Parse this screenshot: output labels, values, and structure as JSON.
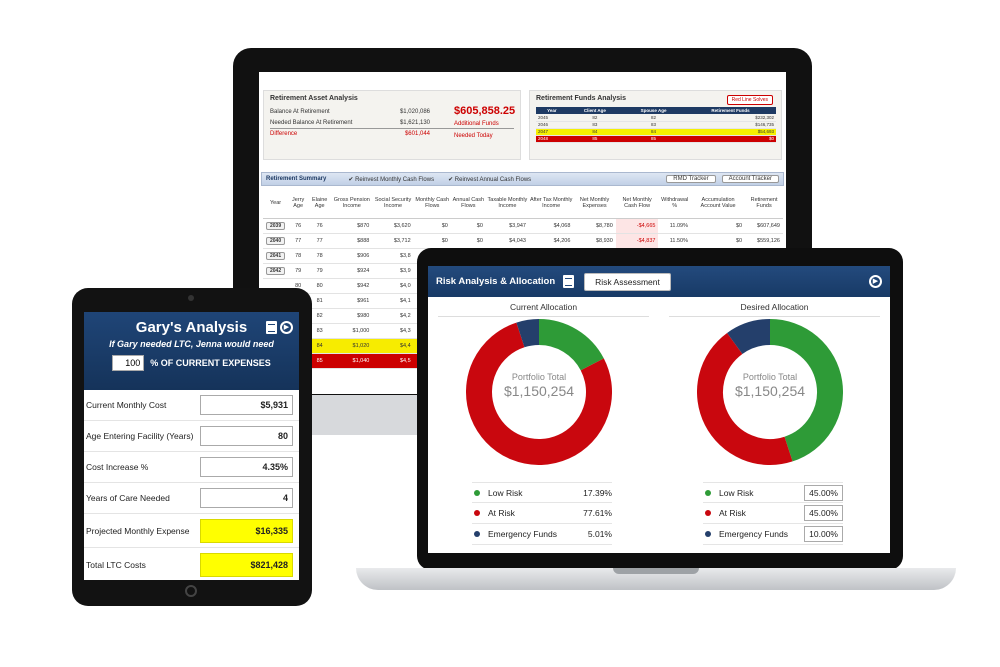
{
  "desktop": {
    "asset": {
      "title": "Retirement Asset Analysis",
      "rows": [
        {
          "label": "Balance At Retirement",
          "value": "$1,020,086"
        },
        {
          "label": "Needed Balance At Retirement",
          "value": "$1,621,130"
        },
        {
          "label": "Difference",
          "value": "$601,044"
        }
      ],
      "big_value": "$605,858.25",
      "additional_funds": "Additional Funds",
      "needed_today": "Needed Today"
    },
    "funds": {
      "title": "Retirement Funds Analysis",
      "red_line_button": "Red Line Solves",
      "headers": [
        "Year",
        "Client Age",
        "Spouse Age",
        "Retirement Funds"
      ],
      "rows": [
        [
          "2045",
          "82",
          "82",
          "$232,302"
        ],
        [
          "2046",
          "83",
          "83",
          "$146,735"
        ],
        [
          "2047",
          "84",
          "84",
          "$54,693"
        ],
        [
          "2048",
          "85",
          "85",
          "$0"
        ]
      ]
    },
    "summary": {
      "title": "Retirement Summary",
      "reinvest_monthly": "Reinvest Monthly Cash Flows",
      "reinvest_annual": "Reinvest Annual Cash Flows",
      "rmd_button": "RMD Tracker",
      "account_button": "Account Tracker",
      "headers": [
        "Year",
        "Jerry Age",
        "Elaine Age",
        "Gross Pension Income",
        "Social Security Income",
        "Monthly Cash Flows",
        "Annual Cash Flows",
        "Taxable Monthly Income",
        "After Tax Monthly Income",
        "Net Monthly Expenses",
        "Net Monthly Cash Flow",
        "Withdrawal %",
        "Accumulation Account Value",
        "Retirement Funds"
      ],
      "rows": [
        [
          "2039",
          "76",
          "76",
          "$870",
          "$3,620",
          "$0",
          "$0",
          "$3,947",
          "$4,068",
          "$8,780",
          "-$4,665",
          "11.09%",
          "$0",
          "$607,649"
        ],
        [
          "2040",
          "77",
          "77",
          "$888",
          "$3,712",
          "$0",
          "$0",
          "$4,043",
          "$4,206",
          "$8,930",
          "-$4,837",
          "11.50%",
          "$0",
          "$559,126"
        ],
        [
          "2041",
          "78",
          "78",
          "$906",
          "$3,8",
          "",
          "",
          "",
          "",
          "",
          "",
          "",
          "",
          ""
        ],
        [
          "2042",
          "79",
          "79",
          "$924",
          "$3,9",
          "",
          "",
          "",
          "",
          "",
          "",
          "",
          "",
          ""
        ],
        [
          "",
          "80",
          "80",
          "$942",
          "$4,0",
          "",
          "",
          "",
          "",
          "",
          "",
          "",
          "",
          ""
        ],
        [
          "",
          "81",
          "81",
          "$961",
          "$4,1",
          "",
          "",
          "",
          "",
          "",
          "",
          "",
          "",
          ""
        ],
        [
          "",
          "82",
          "82",
          "$980",
          "$4,2",
          "",
          "",
          "",
          "",
          "",
          "",
          "",
          "",
          ""
        ],
        [
          "",
          "83",
          "83",
          "$1,000",
          "$4,3",
          "",
          "",
          "",
          "",
          "",
          "",
          "",
          "",
          ""
        ],
        [
          "",
          "84",
          "84",
          "$1,020",
          "$4,4",
          "",
          "",
          "",
          "",
          "",
          "",
          "",
          "",
          ""
        ],
        [
          "",
          "85",
          "85",
          "$1,040",
          "$4,5",
          "",
          "",
          "",
          "",
          "",
          "",
          "",
          "",
          ""
        ]
      ]
    }
  },
  "tablet": {
    "title": "Gary's Analysis",
    "subtitle": "If Gary needed LTC, Jenna would need",
    "percent_value": "100",
    "percent_label": "% OF CURRENT EXPENSES",
    "fields": [
      {
        "label": "Current Monthly Cost",
        "value": "$5,931"
      },
      {
        "label": "Age Entering Facility (Years)",
        "value": "80"
      },
      {
        "label": "Cost Increase %",
        "value": "4.35%"
      },
      {
        "label": "Years of Care Needed",
        "value": "4"
      },
      {
        "label": "Projected Monthly Expense",
        "value": "$16,335"
      },
      {
        "label": "Total LTC Costs",
        "value": "$821,428"
      }
    ]
  },
  "laptop": {
    "title": "Risk Analysis & Allocation",
    "risk_button": "Risk Assessment",
    "current": {
      "title": "Current Allocation",
      "total_label": "Portfolio Total",
      "total_value": "$1,150,254",
      "items": [
        {
          "name": "Low Risk",
          "value": "17.39%"
        },
        {
          "name": "At Risk",
          "value": "77.61%"
        },
        {
          "name": "Emergency Funds",
          "value": "5.01%"
        }
      ]
    },
    "desired": {
      "title": "Desired Allocation",
      "total_label": "Portfolio Total",
      "total_value": "$1,150,254",
      "items": [
        {
          "name": "Low Risk",
          "value": "45.00%"
        },
        {
          "name": "At Risk",
          "value": "45.00%"
        },
        {
          "name": "Emergency Funds",
          "value": "10.00%"
        }
      ]
    },
    "colors": {
      "low_risk": "#2e9b37",
      "at_risk": "#c9070e",
      "emergency": "#243f6b"
    },
    "chart_data": [
      {
        "type": "pie",
        "categories": [
          "Low Risk",
          "At Risk",
          "Emergency Funds"
        ],
        "values": [
          17.39,
          77.61,
          5.01
        ]
      },
      {
        "type": "pie",
        "categories": [
          "Low Risk",
          "At Risk",
          "Emergency Funds"
        ],
        "values": [
          45.0,
          45.0,
          10.0
        ]
      }
    ]
  }
}
